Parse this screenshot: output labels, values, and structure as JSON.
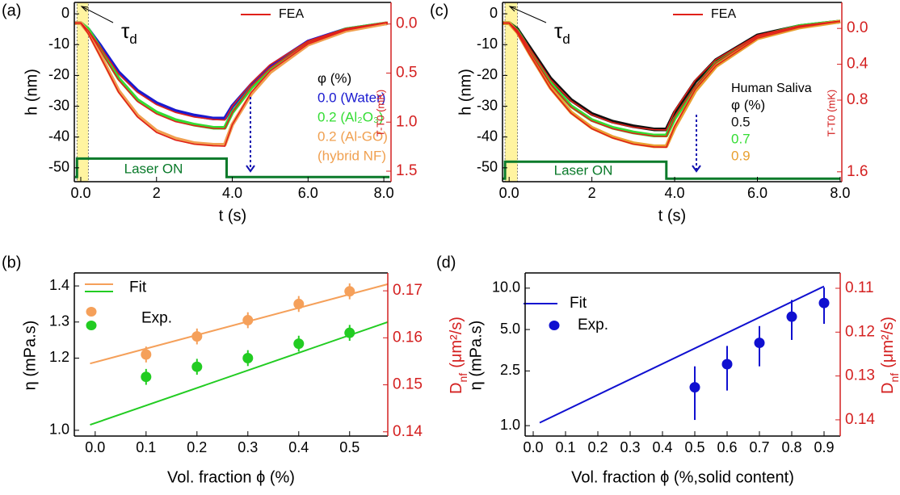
{
  "chart_data": [
    {
      "panel_label": "(a)",
      "type": "line",
      "x": [
        -0.15,
        0,
        0.2,
        0.5,
        1,
        1.5,
        2,
        2.5,
        3,
        3.5,
        3.8,
        4,
        4.5,
        5,
        6,
        7,
        8.1
      ],
      "series": [
        {
          "name": "0.0 (Water)",
          "color": "#1a1ad0",
          "values": [
            -3,
            -3,
            -5,
            -10,
            -19,
            -25,
            -29,
            -31.5,
            -33,
            -34,
            -34,
            -30,
            -23,
            -17,
            -9,
            -5,
            -3
          ]
        },
        {
          "name": "0.2 (Al₂O₃)",
          "color": "#33dd33",
          "values": [
            -3,
            -3,
            -5,
            -11,
            -21,
            -28,
            -32,
            -34.5,
            -36,
            -37,
            -37,
            -32,
            -24,
            -18,
            -9.5,
            -5,
            -3
          ]
        },
        {
          "name": "0.2 (Al-GO)",
          "color": "#f0a050",
          "values": [
            -3,
            -3,
            -6,
            -13,
            -25,
            -33,
            -38,
            -40.5,
            -42,
            -42.5,
            -42.5,
            -36,
            -26,
            -19,
            -10,
            -5.5,
            -3
          ]
        }
      ],
      "fea": {
        "name": "FEA",
        "color": "#e0201a",
        "values": [
          [
            -3,
            -3,
            -5.5,
            -10.5,
            -19.5,
            -25.5,
            -29.5,
            -32,
            -33.5,
            -34.3,
            -34.5,
            -30,
            -22.5,
            -16.5,
            -8.8,
            -4.8,
            -2.8
          ],
          [
            -3,
            -3,
            -5.5,
            -11.5,
            -21.5,
            -28.5,
            -32.5,
            -35,
            -36.3,
            -37.2,
            -37.3,
            -32,
            -23.5,
            -17.5,
            -9.3,
            -5,
            -2.8
          ],
          [
            -3,
            -3,
            -6.5,
            -13.5,
            -25.5,
            -33.5,
            -38.5,
            -41,
            -42.3,
            -42.8,
            -43,
            -36,
            -25.5,
            -18.5,
            -9.8,
            -5.3,
            -2.8
          ]
        ]
      },
      "laser": {
        "label": "Laser ON",
        "color": "#0a7a2a",
        "x": [
          -0.15,
          -0.1,
          -0.1,
          3.85,
          3.85,
          8.15
        ],
        "values": [
          -53,
          -53,
          -47,
          -47,
          -53,
          -53
        ]
      },
      "delay": {
        "label": "τ",
        "sub": "d",
        "x": [
          -0.1,
          0.2
        ]
      },
      "legend_title": "φ (%)",
      "legend_note": "(hybrid NF)",
      "xlabel": "t (s)",
      "ylabel": "h (nm)",
      "y2label": "T-T0 (mK)",
      "xlim": [
        -0.17,
        8.19
      ],
      "xticks": [
        {
          "value": 0,
          "label": "0.0"
        },
        2,
        {
          "value": 4,
          "label": "4.0"
        },
        {
          "value": 6,
          "label": "6.0"
        },
        {
          "value": 8,
          "label": "8.0"
        }
      ],
      "ylim": [
        -54.5,
        3.7
      ],
      "yticks": [
        0,
        -10,
        -20,
        -30,
        -40,
        -50
      ],
      "y2lim": [
        1.607,
        -0.22
      ],
      "y2ticks": [
        {
          "value": 0,
          "label": "0.0"
        },
        0.5,
        {
          "value": 1,
          "label": "1.0"
        },
        1.5
      ]
    },
    {
      "panel_label": "(c)",
      "type": "line",
      "x": [
        -0.15,
        0,
        0.2,
        0.5,
        1,
        1.5,
        2,
        2.5,
        3,
        3.5,
        3.8,
        4,
        4.5,
        5,
        6,
        7,
        8
      ],
      "series": [
        {
          "name": "0.5",
          "color": "#111111",
          "values": [
            -3,
            -3,
            -5,
            -11,
            -21,
            -28,
            -32.5,
            -35,
            -36.5,
            -37.5,
            -37.5,
            -32,
            -22,
            -15,
            -7,
            -4,
            -2.5
          ]
        },
        {
          "name": "0.7",
          "color": "#33dd33",
          "values": [
            -3,
            -3,
            -5.5,
            -12,
            -22.5,
            -30,
            -34.5,
            -37,
            -38.5,
            -39.5,
            -39.5,
            -34,
            -24,
            -16,
            -7.5,
            -4,
            -2.5
          ]
        },
        {
          "name": "0.9",
          "color": "#e8a030",
          "values": [
            -3,
            -3,
            -6,
            -13,
            -24,
            -32,
            -37,
            -40,
            -42,
            -43,
            -43,
            -37,
            -25,
            -17,
            -8,
            -4.5,
            -2.5
          ]
        }
      ],
      "fea": {
        "name": "FEA",
        "color": "#e0201a",
        "values": [
          [
            -3,
            -3,
            -5.3,
            -11.3,
            -21.3,
            -28.3,
            -32.8,
            -35.3,
            -36.8,
            -37.6,
            -37.7,
            -31.5,
            -21.5,
            -14.8,
            -7,
            -3.9,
            -2.4
          ],
          [
            -3,
            -3,
            -5.8,
            -12.3,
            -22.8,
            -30.3,
            -34.8,
            -37.3,
            -38.8,
            -39.7,
            -39.8,
            -33.5,
            -23.5,
            -15.8,
            -7.4,
            -4,
            -2.4
          ],
          [
            -3,
            -3,
            -6.3,
            -13.3,
            -24.3,
            -32.3,
            -37.3,
            -40.3,
            -42.3,
            -43.2,
            -43.3,
            -36.5,
            -24.5,
            -16.8,
            -7.9,
            -4.4,
            -2.4
          ]
        ]
      },
      "laser": {
        "label": "Laser ON",
        "color": "#0a7a2a",
        "x": [
          -0.15,
          -0.1,
          -0.1,
          3.8,
          3.8,
          8.0
        ],
        "values": [
          -53.5,
          -53.5,
          -48,
          -48,
          -53.5,
          -53.5
        ]
      },
      "delay": {
        "label": "τ",
        "sub": "d",
        "x": [
          -0.1,
          0.2
        ]
      },
      "legend_heading": "Human Saliva",
      "legend_title": "φ (%)",
      "xlabel": "t (s)",
      "ylabel": "h (nm)",
      "y2label": "T-T0 (mK)",
      "xlim": [
        -0.16,
        8.04
      ],
      "xticks": [
        {
          "value": 0,
          "label": "0.0"
        },
        2,
        {
          "value": 4,
          "label": "4.0"
        },
        {
          "value": 6,
          "label": "6.0"
        },
        {
          "value": 8,
          "label": "8.0"
        }
      ],
      "ylim": [
        -54.5,
        3.7
      ],
      "yticks": [
        0,
        -10,
        -20,
        -30,
        -40,
        -50
      ],
      "y2lim": [
        1.71,
        -0.29
      ],
      "y2ticks": [
        {
          "value": 0,
          "label": "0.0"
        },
        0.4,
        0.8,
        1.6
      ]
    },
    {
      "panel_label": "(b)",
      "type": "scatter",
      "x": [
        0.1,
        0.2,
        0.3,
        0.4,
        0.5
      ],
      "series": [
        {
          "color": "#f5a05a",
          "values": [
            1.21,
            1.26,
            1.305,
            1.35,
            1.385
          ],
          "errors": [
            0.022,
            0.022,
            0.022,
            0.022,
            0.022
          ],
          "fit": {
            "x": [
              -0.01,
              0.575
            ],
            "values": [
              1.185,
              1.405
            ]
          }
        },
        {
          "color": "#22cc22",
          "values": [
            1.148,
            1.176,
            1.2,
            1.24,
            1.27
          ],
          "errors": [
            0.022,
            0.022,
            0.022,
            0.022,
            0.022
          ],
          "fit": {
            "x": [
              -0.01,
              0.575
            ],
            "values": [
              1.015,
              1.3
            ]
          }
        }
      ],
      "fit_label": "Fit",
      "exp_label": "Exp.",
      "xlabel": "Vol. fraction ϕ (%)",
      "ylabel": "η (mPa.s)",
      "y2label": {
        "text": "D",
        "sub": "nf",
        "unit": "(μm²/s)"
      },
      "xlim": [
        -0.041,
        0.575
      ],
      "xticks": [
        {
          "value": 0,
          "label": "0.0"
        },
        0.1,
        0.2,
        0.3,
        0.4,
        0.5
      ],
      "ylim": [
        0.984,
        1.436
      ],
      "yticks": [
        {
          "value": 1,
          "label": "1.0"
        },
        1.2,
        1.3,
        1.4
      ],
      "y2lim": [
        0.1391,
        0.1738
      ],
      "y2ticks": [
        0.14,
        0.15,
        0.16,
        0.17
      ]
    },
    {
      "panel_label": "(d)",
      "type": "scatter",
      "log_y": true,
      "x": [
        0.5,
        0.6,
        0.7,
        0.8,
        0.9
      ],
      "series": [
        {
          "color": "#1010d0",
          "values": [
            1.9,
            2.8,
            4.0,
            6.2,
            7.8
          ],
          "errors": [
            0.8,
            1.0,
            1.3,
            2.0,
            2.3
          ],
          "fit": {
            "x": [
              0.02,
              0.9
            ],
            "values": [
              1.05,
              10.3
            ]
          }
        }
      ],
      "fit_label": "Fit",
      "exp_label": "Exp.",
      "xlabel": "Vol. fraction ϕ (%,solid content)",
      "ylabel": "η (mPa.s)",
      "y2label": {
        "text": "D",
        "sub": "nf",
        "unit": "(μm²/s)"
      },
      "xlim": [
        -0.025,
        0.95
      ],
      "xticks": [
        {
          "value": 0,
          "label": "0.0"
        },
        0.1,
        0.2,
        0.3,
        0.4,
        0.5,
        0.6,
        0.7,
        0.8,
        0.9
      ],
      "ylim": [
        0.84,
        12.9
      ],
      "yticks": [
        {
          "value": 1,
          "label": "1.0"
        },
        2.5,
        {
          "value": 5,
          "label": "5.0"
        },
        {
          "value": 10,
          "label": "10.0"
        }
      ],
      "y2lim": [
        0.1437,
        0.1065
      ],
      "y2ticks": [
        0.11,
        0.12,
        0.13,
        0.14
      ]
    }
  ]
}
